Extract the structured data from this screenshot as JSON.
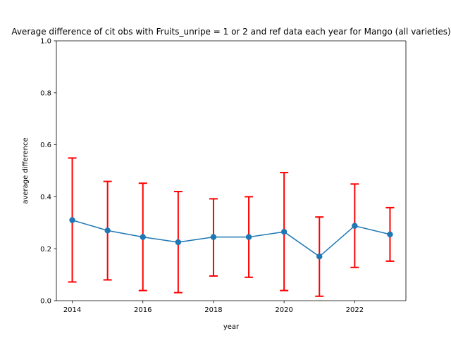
{
  "chart_data": {
    "type": "line",
    "title": "Average difference of cit obs with Fruits_unripe = 1 or 2 and ref data each year for Mango (all varieties)",
    "xlabel": "year",
    "ylabel": "average difference",
    "xlim": [
      2013.55,
      2023.45
    ],
    "ylim": [
      0,
      1
    ],
    "x_ticks": [
      2014,
      2016,
      2018,
      2020,
      2022
    ],
    "y_ticks": [
      0.0,
      0.2,
      0.4,
      0.6,
      0.8,
      1.0
    ],
    "x_tick_labels": [
      "2014",
      "2016",
      "2018",
      "2020",
      "2022"
    ],
    "y_tick_labels": [
      "0.0",
      "0.2",
      "0.4",
      "0.6",
      "0.8",
      "1.0"
    ],
    "grid": false,
    "series": [
      {
        "x": [
          2014,
          2015,
          2016,
          2017,
          2018,
          2019,
          2020,
          2021,
          2022,
          2023
        ],
        "y": [
          0.31,
          0.27,
          0.245,
          0.225,
          0.245,
          0.245,
          0.265,
          0.17,
          0.288,
          0.255
        ],
        "err_low": [
          0.072,
          0.08,
          0.039,
          0.031,
          0.095,
          0.09,
          0.039,
          0.017,
          0.128,
          0.152
        ],
        "err_high": [
          0.549,
          0.459,
          0.452,
          0.42,
          0.392,
          0.4,
          0.493,
          0.322,
          0.449,
          0.358
        ],
        "color": "#1f77b4",
        "error_color": "#ff0000"
      }
    ]
  }
}
